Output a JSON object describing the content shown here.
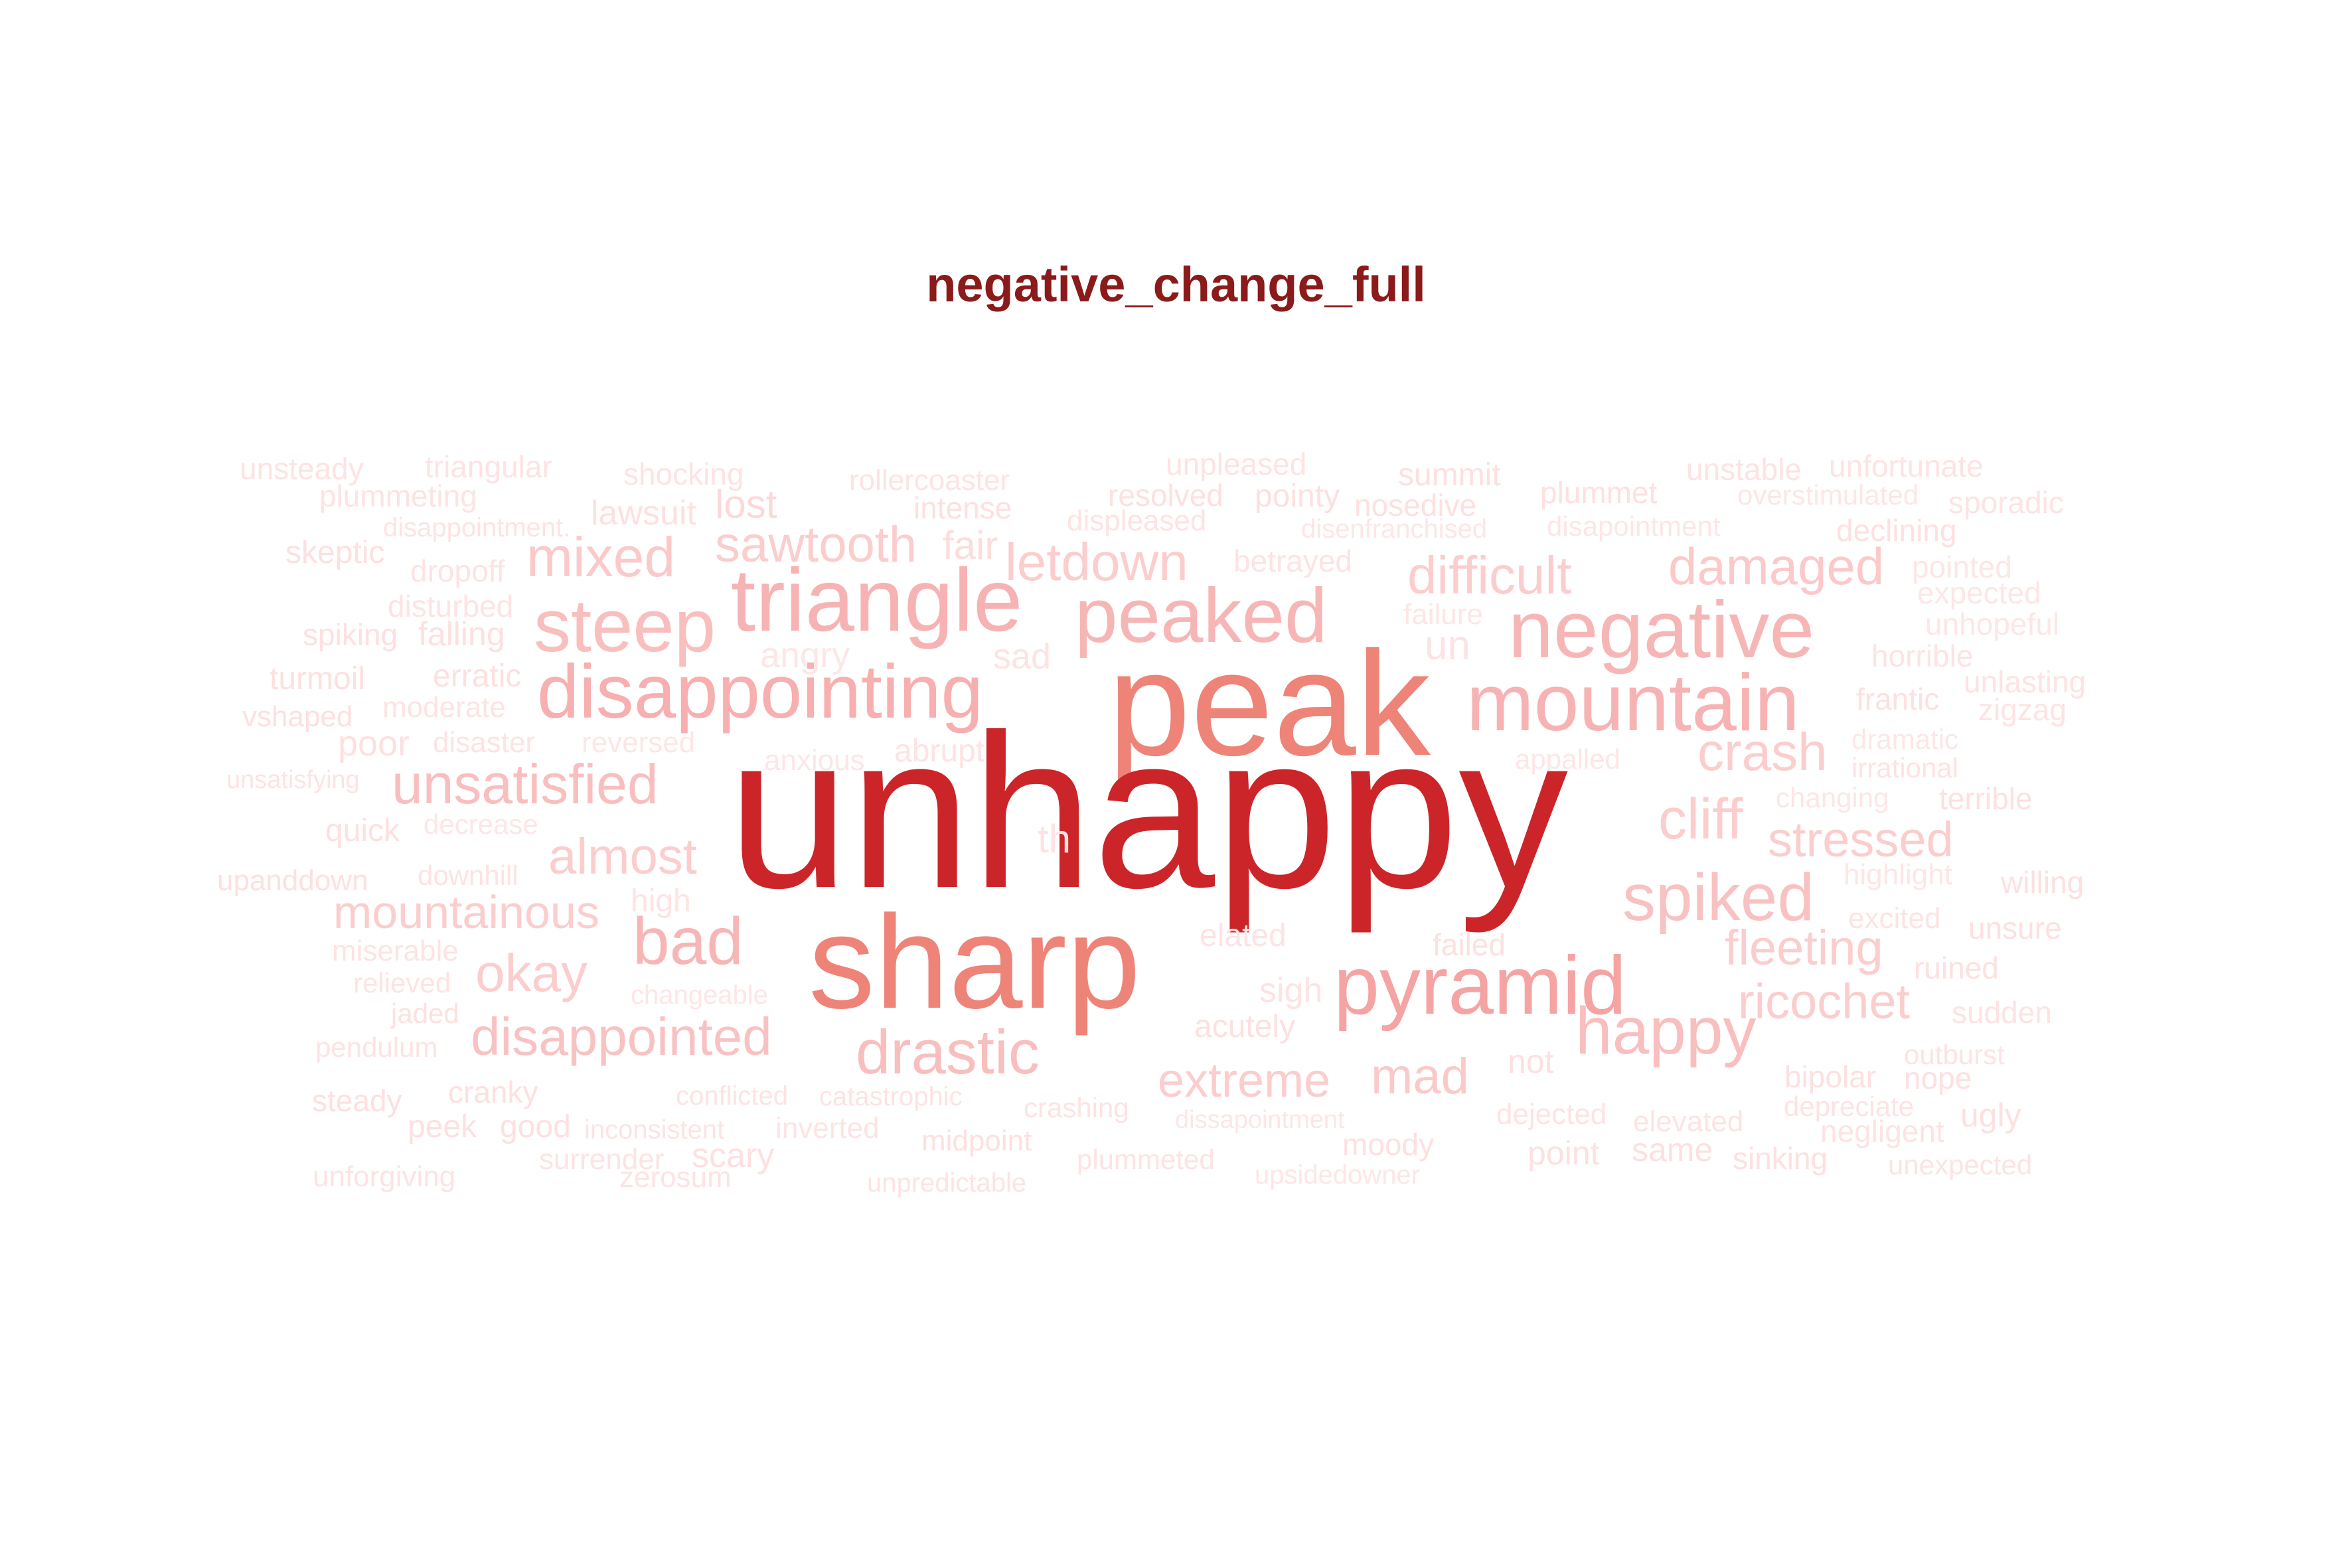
{
  "title": "negative_change_full",
  "title_color": "#8b1a1a",
  "words": [
    {
      "text": "unsteady",
      "weight": 1,
      "color": "#fde3e3"
    },
    {
      "text": "triangular",
      "weight": 1,
      "color": "#fde3e3"
    },
    {
      "text": "shocking",
      "weight": 1,
      "color": "#fde3e3"
    },
    {
      "text": "rollercoaster",
      "weight": 1,
      "color": "#fde3e3"
    },
    {
      "text": "unpleased",
      "weight": 1,
      "color": "#fde3e3"
    },
    {
      "text": "summit",
      "weight": 1,
      "color": "#fde0e0"
    },
    {
      "text": "unstable",
      "weight": 1,
      "color": "#fde3e3"
    },
    {
      "text": "unfortunate",
      "weight": 1,
      "color": "#fde3e3"
    },
    {
      "text": "plummeting",
      "weight": 1,
      "color": "#fde3e3"
    },
    {
      "text": "lawsuit",
      "weight": 1,
      "color": "#fde0e0"
    },
    {
      "text": "lost",
      "weight": 2,
      "color": "#fcd9d9"
    },
    {
      "text": "intense",
      "weight": 1,
      "color": "#fde0e0"
    },
    {
      "text": "resolved",
      "weight": 1,
      "color": "#fde0e0"
    },
    {
      "text": "pointy",
      "weight": 1,
      "color": "#fde0e0"
    },
    {
      "text": "nosedive",
      "weight": 1,
      "color": "#fde0e0"
    },
    {
      "text": "plummet",
      "weight": 1,
      "color": "#fde0e0"
    },
    {
      "text": "overstimulated",
      "weight": 1,
      "color": "#fde6e6"
    },
    {
      "text": "sporadic",
      "weight": 1,
      "color": "#fde3e3"
    },
    {
      "text": "skeptic",
      "weight": 1,
      "color": "#fde0e0"
    },
    {
      "text": "disappointment.",
      "weight": 1,
      "color": "#fde3e3"
    },
    {
      "text": "fair",
      "weight": 2,
      "color": "#fcdcdc"
    },
    {
      "text": "displeased",
      "weight": 1,
      "color": "#fde3e3"
    },
    {
      "text": "disenfranchised",
      "weight": 1,
      "color": "#fde6e6"
    },
    {
      "text": "disapointment",
      "weight": 1,
      "color": "#fde6e6"
    },
    {
      "text": "declining",
      "weight": 1,
      "color": "#fde0e0"
    },
    {
      "text": "dropoff",
      "weight": 1,
      "color": "#fde3e3"
    },
    {
      "text": "mixed",
      "weight": 3,
      "color": "#fbc9c9"
    },
    {
      "text": "sawtooth",
      "weight": 3,
      "color": "#fbcdcd"
    },
    {
      "text": "letdown",
      "weight": 3,
      "color": "#fbcdcd"
    },
    {
      "text": "betrayed",
      "weight": 1,
      "color": "#fde3e3"
    },
    {
      "text": "difficult",
      "weight": 3,
      "color": "#fbcdcd"
    },
    {
      "text": "damaged",
      "weight": 3,
      "color": "#fbc9c9"
    },
    {
      "text": "pointed",
      "weight": 1,
      "color": "#fde6e6"
    },
    {
      "text": "expected",
      "weight": 1,
      "color": "#fde6e6"
    },
    {
      "text": "triangle",
      "weight": 5,
      "color": "#f7b3b3"
    },
    {
      "text": "disturbed",
      "weight": 1,
      "color": "#fde3e3"
    },
    {
      "text": "steep",
      "weight": 4,
      "color": "#f9bebe"
    },
    {
      "text": "peaked",
      "weight": 5,
      "color": "#f7b6b6"
    },
    {
      "text": "failure",
      "weight": 1,
      "color": "#fde6e6"
    },
    {
      "text": "negative",
      "weight": 5,
      "color": "#f7b6b6"
    },
    {
      "text": "unhopeful",
      "weight": 1,
      "color": "#fde6e6"
    },
    {
      "text": "spiking",
      "weight": 1,
      "color": "#fde0e0"
    },
    {
      "text": "falling",
      "weight": 1,
      "color": "#fde0e0"
    },
    {
      "text": "angry",
      "weight": 1,
      "color": "#fde6e6"
    },
    {
      "text": "sad",
      "weight": 2,
      "color": "#fde3e3"
    },
    {
      "text": "un",
      "weight": 2,
      "color": "#fde3e3"
    },
    {
      "text": "horrible",
      "weight": 1,
      "color": "#fde3e3"
    },
    {
      "text": "turmoil",
      "weight": 1,
      "color": "#fde0e0"
    },
    {
      "text": "erratic",
      "weight": 1,
      "color": "#fde0e0"
    },
    {
      "text": "disappointing",
      "weight": 6,
      "color": "#f7afaf"
    },
    {
      "text": "peak",
      "weight": 9,
      "color": "#ee8378"
    },
    {
      "text": "mountain",
      "weight": 6,
      "color": "#f7b3b3"
    },
    {
      "text": "unlasting",
      "weight": 1,
      "color": "#fde3e3"
    },
    {
      "text": "vshaped",
      "weight": 1,
      "color": "#fde0e0"
    },
    {
      "text": "moderate",
      "weight": 1,
      "color": "#fde3e3"
    },
    {
      "text": "frantic",
      "weight": 1,
      "color": "#fde0e0"
    },
    {
      "text": "zigzag",
      "weight": 1,
      "color": "#fde3e3"
    },
    {
      "text": "poor",
      "weight": 2,
      "color": "#fde0e0"
    },
    {
      "text": "disaster",
      "weight": 1,
      "color": "#fde3e3"
    },
    {
      "text": "reversed",
      "weight": 1,
      "color": "#fde6e6"
    },
    {
      "text": "abrupt",
      "weight": 1,
      "color": "#fde3e3"
    },
    {
      "text": "crash",
      "weight": 3,
      "color": "#fbcdcd"
    },
    {
      "text": "dramatic",
      "weight": 1,
      "color": "#fde6e6"
    },
    {
      "text": "anxious",
      "weight": 1,
      "color": "#fde6e6"
    },
    {
      "text": "appalled",
      "weight": 1,
      "color": "#fde6e6"
    },
    {
      "text": "irrational",
      "weight": 1,
      "color": "#fde3e3"
    },
    {
      "text": "unsatisfying",
      "weight": 1,
      "color": "#fde3e3"
    },
    {
      "text": "unsatisfied",
      "weight": 5,
      "color": "#f9bebe"
    },
    {
      "text": "unhappy",
      "weight": 14,
      "color": "#cc2529"
    },
    {
      "text": "changing",
      "weight": 1,
      "color": "#fde6e6"
    },
    {
      "text": "terrible",
      "weight": 1,
      "color": "#fde0e0"
    },
    {
      "text": "cliff",
      "weight": 3,
      "color": "#fbcdcd"
    },
    {
      "text": "quick",
      "weight": 1,
      "color": "#fde0e0"
    },
    {
      "text": "decrease",
      "weight": 1,
      "color": "#fde6e6"
    },
    {
      "text": "th",
      "weight": 2,
      "color": "#fde3e3"
    },
    {
      "text": "stressed",
      "weight": 3,
      "color": "#fbcdcd"
    },
    {
      "text": "almost",
      "weight": 3,
      "color": "#fbcdcd"
    },
    {
      "text": "upanddown",
      "weight": 1,
      "color": "#fde0e0"
    },
    {
      "text": "downhill",
      "weight": 1,
      "color": "#fde3e3"
    },
    {
      "text": "highlight",
      "weight": 1,
      "color": "#fde6e6"
    },
    {
      "text": "willing",
      "weight": 1,
      "color": "#fde0e0"
    },
    {
      "text": "spiked",
      "weight": 4,
      "color": "#f9c2c2"
    },
    {
      "text": "high",
      "weight": 1,
      "color": "#fde3e3"
    },
    {
      "text": "mountainous",
      "weight": 3,
      "color": "#fbcdcd"
    },
    {
      "text": "sharp",
      "weight": 10,
      "color": "#ee8378"
    },
    {
      "text": "excited",
      "weight": 1,
      "color": "#fde3e3"
    },
    {
      "text": "unsure",
      "weight": 1,
      "color": "#fde0e0"
    },
    {
      "text": "miserable",
      "weight": 1,
      "color": "#fde3e3"
    },
    {
      "text": "bad",
      "weight": 5,
      "color": "#f7b6b6"
    },
    {
      "text": "elated",
      "weight": 1,
      "color": "#fde3e3"
    },
    {
      "text": "failed",
      "weight": 1,
      "color": "#fde0e0"
    },
    {
      "text": "fleeting",
      "weight": 3,
      "color": "#fbcdcd"
    },
    {
      "text": "ruined",
      "weight": 1,
      "color": "#fde0e0"
    },
    {
      "text": "okay",
      "weight": 3,
      "color": "#fbcdcd"
    },
    {
      "text": "relieved",
      "weight": 1,
      "color": "#fde3e3"
    },
    {
      "text": "pyramid",
      "weight": 6,
      "color": "#f5a3a3"
    },
    {
      "text": "changeable",
      "weight": 1,
      "color": "#fde6e6"
    },
    {
      "text": "sigh",
      "weight": 1,
      "color": "#fde3e3"
    },
    {
      "text": "ricochet",
      "weight": 3,
      "color": "#fbcdcd"
    },
    {
      "text": "jaded",
      "weight": 1,
      "color": "#fde0e0"
    },
    {
      "text": "sudden",
      "weight": 1,
      "color": "#fde3e3"
    },
    {
      "text": "acutely",
      "weight": 1,
      "color": "#fde0e0"
    },
    {
      "text": "happy",
      "weight": 4,
      "color": "#f9bebe"
    },
    {
      "text": "pendulum",
      "weight": 1,
      "color": "#fde3e3"
    },
    {
      "text": "disappointed",
      "weight": 4,
      "color": "#f9c2c2"
    },
    {
      "text": "drastic",
      "weight": 4,
      "color": "#f9bebe"
    },
    {
      "text": "outburst",
      "weight": 1,
      "color": "#fde3e3"
    },
    {
      "text": "extreme",
      "weight": 3,
      "color": "#fbcdcd"
    },
    {
      "text": "mad",
      "weight": 3,
      "color": "#fbc9c9"
    },
    {
      "text": "not",
      "weight": 2,
      "color": "#fde0e0"
    },
    {
      "text": "bipolar",
      "weight": 1,
      "color": "#fde0e0"
    },
    {
      "text": "nope",
      "weight": 1,
      "color": "#fde0e0"
    },
    {
      "text": "steady",
      "weight": 1,
      "color": "#fde0e0"
    },
    {
      "text": "cranky",
      "weight": 1,
      "color": "#fde0e0"
    },
    {
      "text": "conflicted",
      "weight": 1,
      "color": "#fde3e3"
    },
    {
      "text": "catastrophic",
      "weight": 1,
      "color": "#fde3e3"
    },
    {
      "text": "crashing",
      "weight": 1,
      "color": "#fde3e3"
    },
    {
      "text": "depreciate",
      "weight": 1,
      "color": "#fde3e3"
    },
    {
      "text": "ugly",
      "weight": 1,
      "color": "#fde0e0"
    },
    {
      "text": "peek",
      "weight": 1,
      "color": "#fde0e0"
    },
    {
      "text": "good",
      "weight": 1,
      "color": "#fde0e0"
    },
    {
      "text": "inconsistent",
      "weight": 1,
      "color": "#fde3e3"
    },
    {
      "text": "inverted",
      "weight": 1,
      "color": "#fde3e3"
    },
    {
      "text": "dissapointment",
      "weight": 1,
      "color": "#fde6e6"
    },
    {
      "text": "dejected",
      "weight": 1,
      "color": "#fde3e3"
    },
    {
      "text": "elevated",
      "weight": 1,
      "color": "#fde3e3"
    },
    {
      "text": "negligent",
      "weight": 1,
      "color": "#fde3e3"
    },
    {
      "text": "surrender",
      "weight": 1,
      "color": "#fde3e3"
    },
    {
      "text": "scary",
      "weight": 1,
      "color": "#fde0e0"
    },
    {
      "text": "midpoint",
      "weight": 1,
      "color": "#fde0e0"
    },
    {
      "text": "moody",
      "weight": 1,
      "color": "#fde0e0"
    },
    {
      "text": "point",
      "weight": 1,
      "color": "#fde0e0"
    },
    {
      "text": "same",
      "weight": 1,
      "color": "#fde0e0"
    },
    {
      "text": "sinking",
      "weight": 1,
      "color": "#fde0e0"
    },
    {
      "text": "plummeted",
      "weight": 1,
      "color": "#fde3e3"
    },
    {
      "text": "unexpected",
      "weight": 1,
      "color": "#fde3e3"
    },
    {
      "text": "unforgiving",
      "weight": 1,
      "color": "#fde3e3"
    },
    {
      "text": "zerosum",
      "weight": 1,
      "color": "#fde3e3"
    },
    {
      "text": "unpredictable",
      "weight": 1,
      "color": "#fde3e3"
    },
    {
      "text": "upsidedowner",
      "weight": 1,
      "color": "#fde6e6"
    }
  ]
}
